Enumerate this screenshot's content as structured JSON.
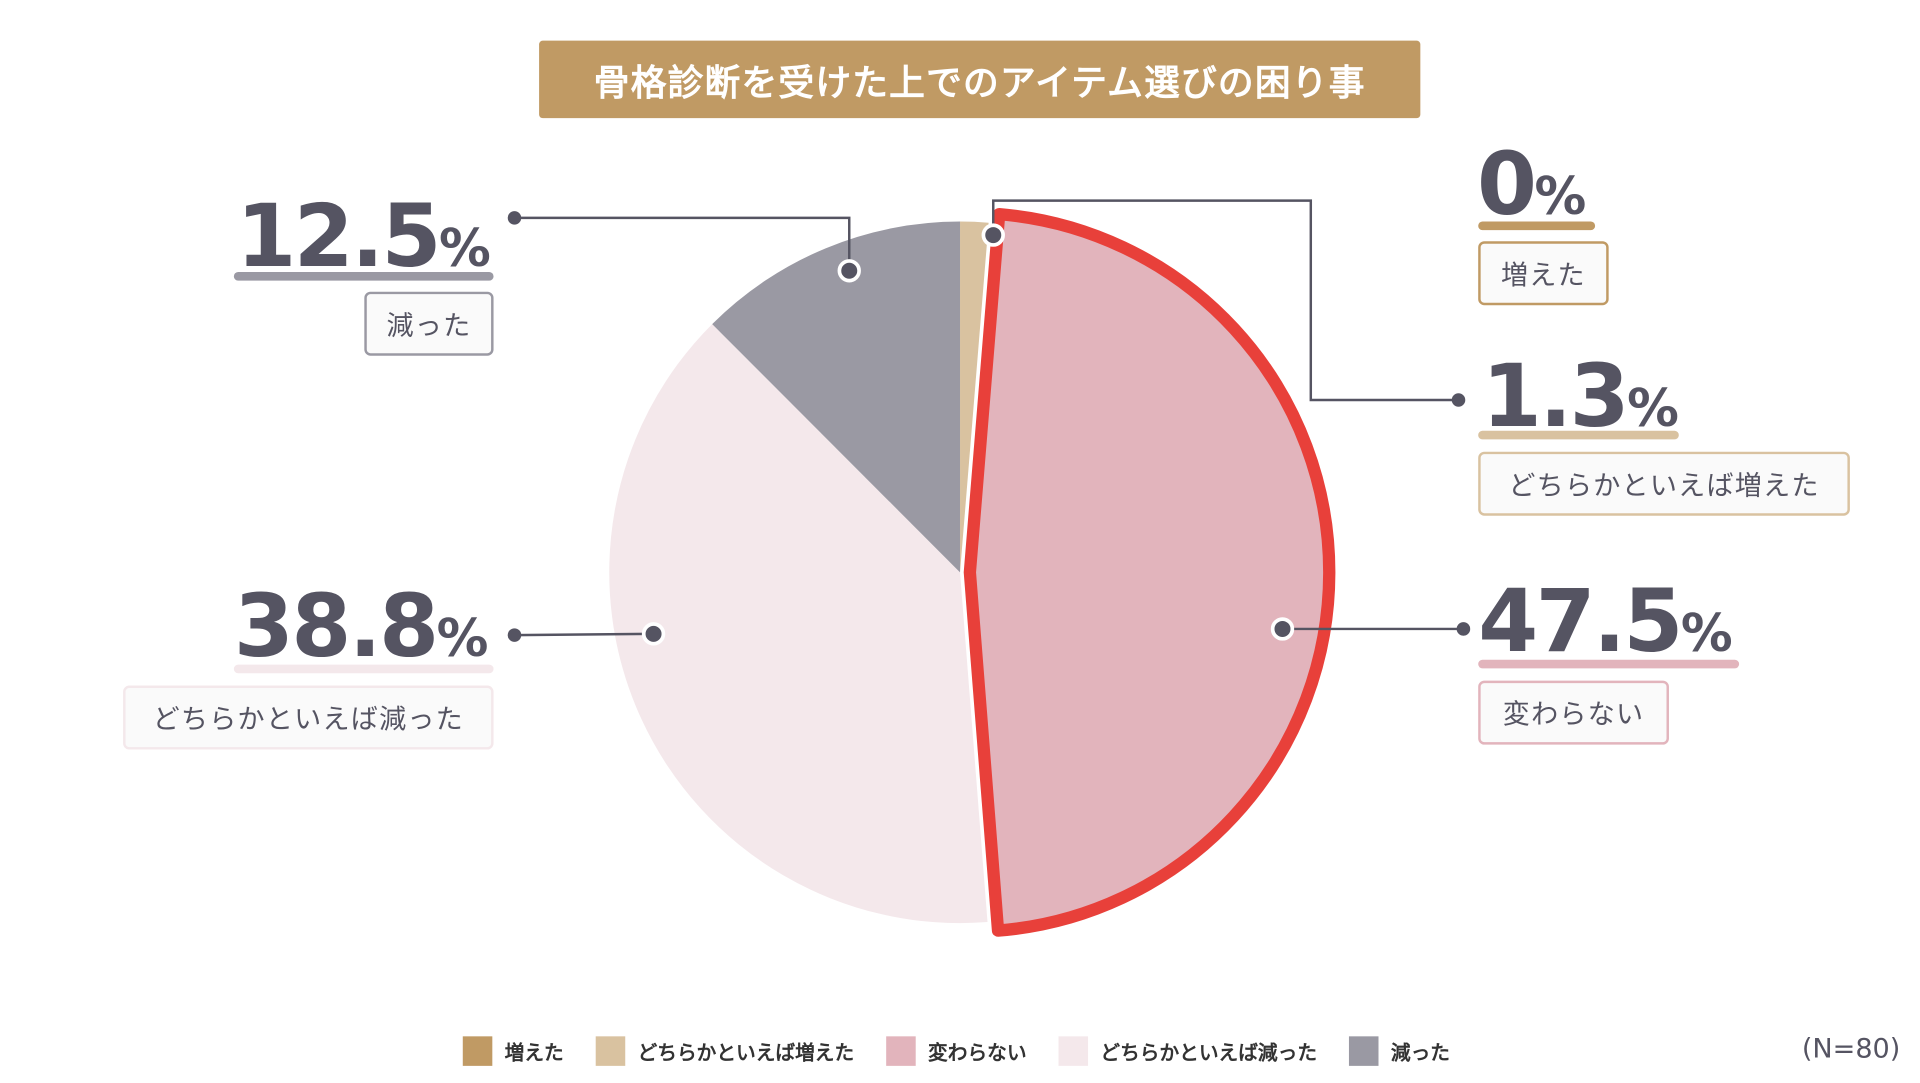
{
  "chart_data": {
    "type": "pie",
    "title": "骨格診断を受けた上でのアイテム選びの困り事",
    "categories": [
      "増えた",
      "どちらかといえば増えた",
      "変わらない",
      "どちらかといえば減った",
      "減った"
    ],
    "values": [
      0,
      1.3,
      47.5,
      38.8,
      12.5
    ],
    "value_labels": [
      "0",
      "1.3",
      "47.5",
      "38.8",
      "12.5"
    ],
    "percent_sign": "%",
    "colors": [
      "#c09a64",
      "#d9c2a0",
      "#e2b4bc",
      "#f4e8eb",
      "#9a99a3"
    ],
    "highlight": "変わらない",
    "highlight_color": "#e8403a",
    "legend_position": "bottom",
    "note": "(N=80)"
  }
}
